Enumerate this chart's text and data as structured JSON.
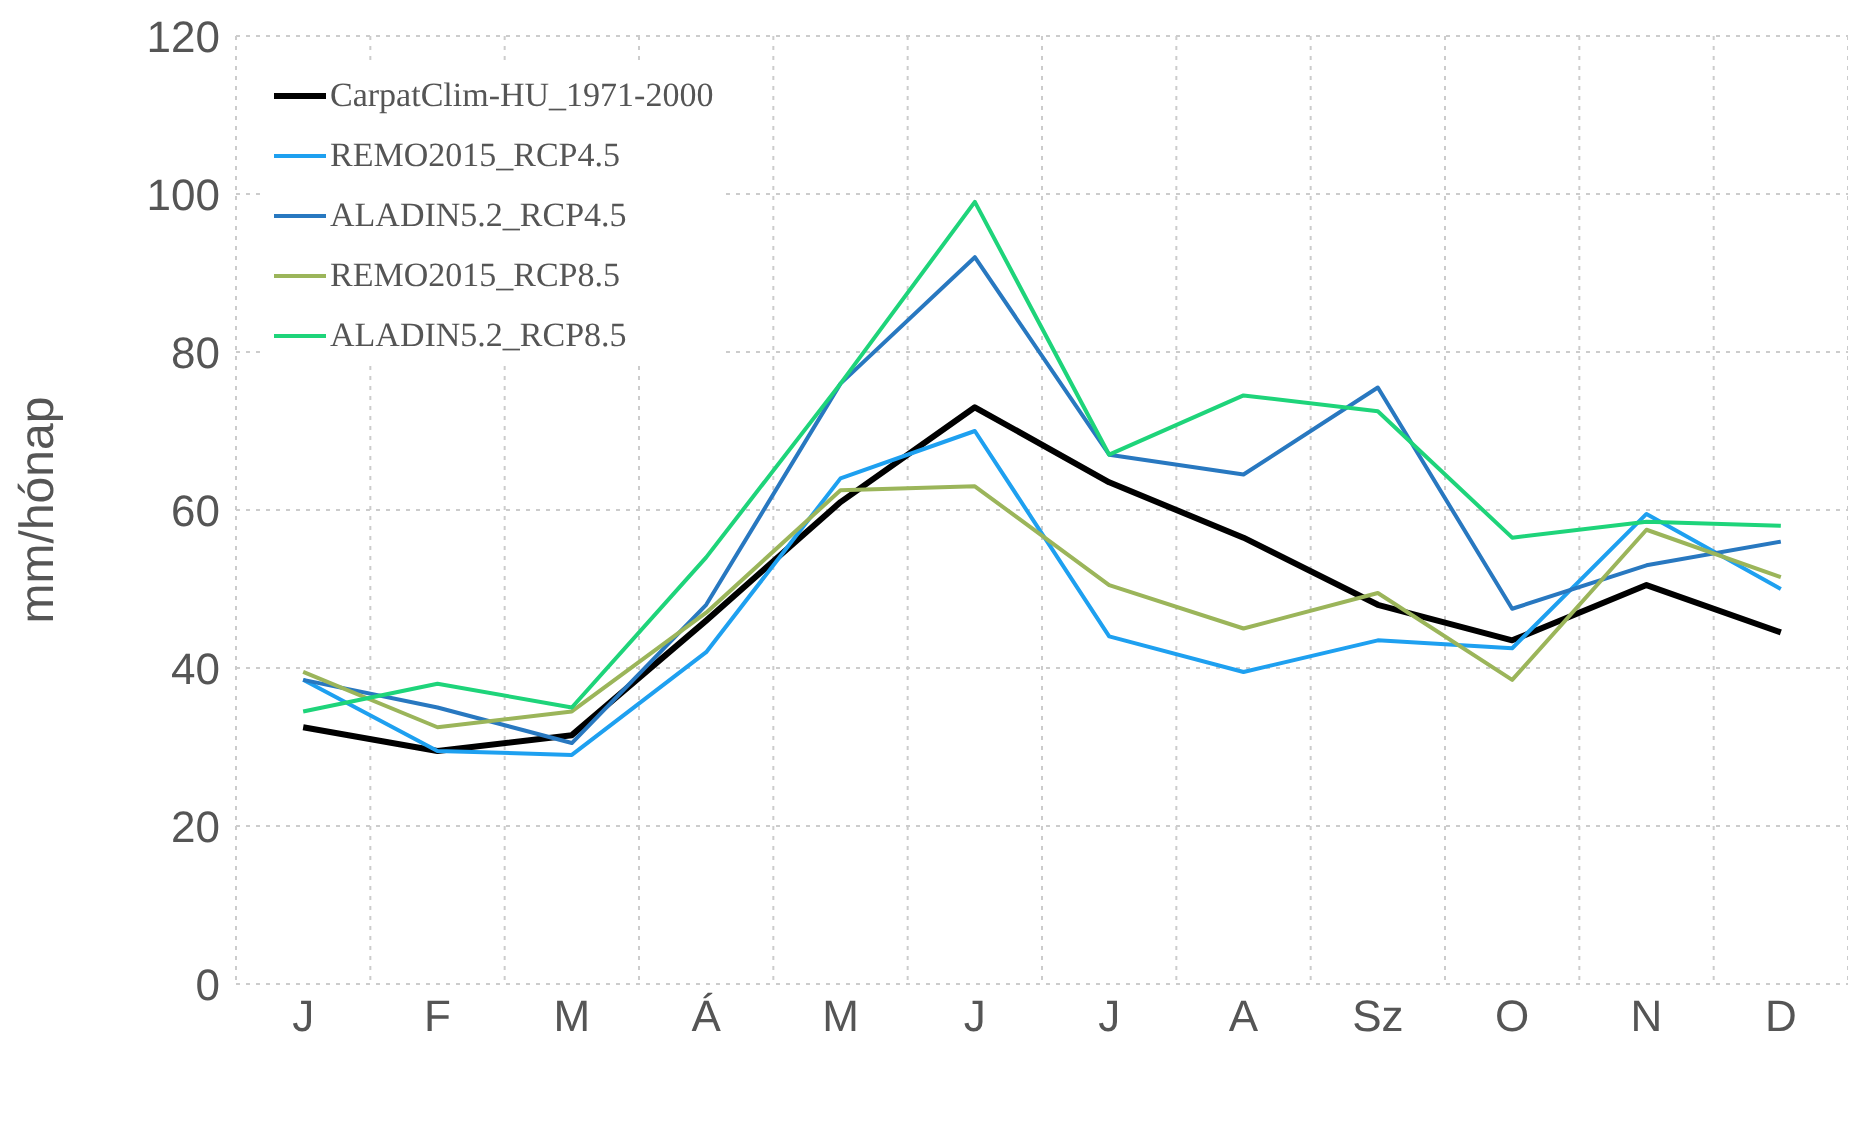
{
  "chart_data": {
    "type": "line",
    "ylabel": "mm/hónap",
    "categories": [
      "J",
      "F",
      "M",
      "Á",
      "M",
      "J",
      "J",
      "A",
      "Sz",
      "O",
      "N",
      "D"
    ],
    "ylim": [
      0,
      120
    ],
    "yticks": [
      0,
      20,
      40,
      60,
      80,
      100,
      120
    ],
    "grid": true,
    "legend": "top left",
    "marker": "none",
    "line_style": "solid",
    "series": [
      {
        "name": "CarpatClim-HU_1971-2000",
        "color": "#000000",
        "values": [
          32.5,
          29.5,
          31.5,
          46,
          61,
          73,
          63.5,
          56.5,
          48,
          43.5,
          50.5,
          44.5
        ]
      },
      {
        "name": "REMO2015_RCP4.5",
        "color": "#1ea0f0",
        "values": [
          38.5,
          29.5,
          29,
          42,
          64,
          70,
          44,
          39.5,
          43.5,
          42.5,
          59.5,
          50
        ]
      },
      {
        "name": "ALADIN5.2_RCP4.5",
        "color": "#2878c0",
        "values": [
          38.5,
          35,
          30.5,
          48,
          76,
          92,
          67,
          64.5,
          75.5,
          47.5,
          53,
          56
        ]
      },
      {
        "name": "REMO2015_RCP8.5",
        "color": "#9bb55a",
        "values": [
          39.5,
          32.5,
          34.5,
          47,
          62.5,
          63,
          50.5,
          45,
          49.5,
          38.5,
          57.5,
          51.5
        ]
      },
      {
        "name": "ALADIN5.2_RCP8.5",
        "color": "#1ed47a",
        "values": [
          34.5,
          38,
          35,
          54,
          76,
          99,
          67,
          74.5,
          72.5,
          56.5,
          58.5,
          58
        ]
      }
    ]
  }
}
